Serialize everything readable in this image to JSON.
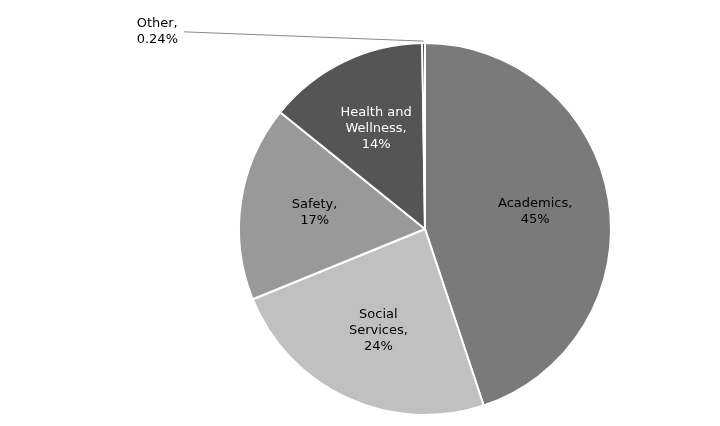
{
  "chart_data": {
    "type": "pie",
    "categories": [
      "Academics",
      "Social Services",
      "Safety",
      "Health and Wellness",
      "Other"
    ],
    "values": [
      45,
      24,
      17,
      14,
      0.24
    ],
    "value_labels": [
      "Academics,\n45%",
      "Social\nServices,\n24%",
      "Safety,\n17%",
      "Health and\nWellness,\n14%",
      "Other,\n0.24%"
    ],
    "colors": [
      "#7a7a7a",
      "#c0c0c0",
      "#999999",
      "#555555",
      "#1a1a1a"
    ],
    "data_labels": true,
    "legend": false
  }
}
